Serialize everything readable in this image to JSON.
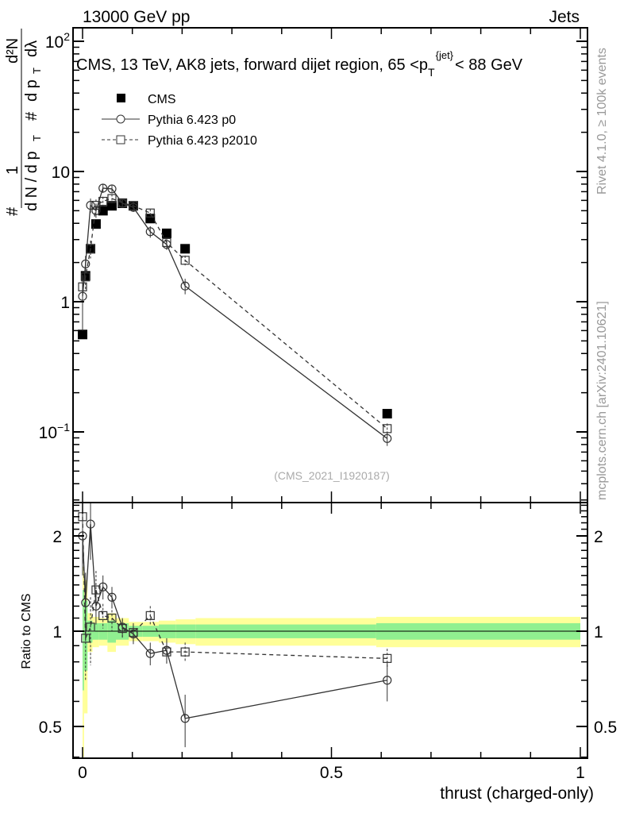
{
  "header": {
    "left": "13000 GeV pp",
    "right": "Jets"
  },
  "side": {
    "rivet": "Rivet 4.1.0, ≥ 100k events",
    "mcplots": "mcplots.cern.ch [arXiv:2401.10621]"
  },
  "chart_data": [
    {
      "type": "line",
      "title": "CMS, 13 TeV, AK8 jets, forward dijet region, 65 < p_T^{jet} < 88 GeV",
      "title_main": "CMS, 13 TeV, AK8 jets, forward dijet region, 65 <p",
      "title_sup": "{jet}",
      "title_sub": "T",
      "title_end": "< 88 GeV",
      "analysis": "(CMS_2021_I1920187)",
      "ylabel": "1/N dN/dpT d²N/dpT dλ",
      "ylabel_parts": {
        "frac1_num": "1",
        "frac1_den": "d N / d p",
        "frac2_num": "d²N",
        "frac2_den": "d p",
        "dl": "dλ",
        "hash": "#",
        "sub": "T"
      },
      "yscale": "log",
      "ylim": [
        0.029,
        123
      ],
      "yticks": [
        {
          "v": 100,
          "base": "10",
          "exp": "2"
        },
        {
          "v": 10,
          "base": "10",
          "exp": ""
        },
        {
          "v": 1,
          "base": "1",
          "exp": ""
        },
        {
          "v": 0.1,
          "base": "10",
          "exp": "−1"
        }
      ],
      "legend_position": "top-left",
      "x": [
        0.0,
        0.006,
        0.016,
        0.027,
        0.041,
        0.059,
        0.08,
        0.102,
        0.136,
        0.169,
        0.206,
        0.612
      ],
      "series": [
        {
          "name": "CMS",
          "style": "filled-square",
          "values": [
            0.56,
            1.58,
            2.55,
            3.95,
            5.0,
            5.45,
            5.7,
            5.45,
            4.35,
            3.35,
            2.55,
            0.138
          ],
          "err": [
            0.03,
            0.06,
            0.08,
            0.1,
            0.1,
            0.1,
            0.1,
            0.1,
            0.1,
            0.08,
            0.06,
            0.004
          ]
        },
        {
          "name": "Pythia 6.423 p0",
          "style": "circle-solid",
          "values": [
            1.1,
            1.95,
            5.5,
            5.0,
            7.45,
            7.35,
            5.7,
            5.3,
            3.45,
            2.75,
            1.32,
            0.089
          ],
          "err": [
            0.5,
            0.3,
            0.7,
            0.6,
            0.6,
            0.5,
            0.4,
            0.4,
            0.35,
            0.25,
            0.18,
            0.011
          ]
        },
        {
          "name": "Pythia 6.423 p2010",
          "style": "square-dashed",
          "values": [
            1.3,
            1.55,
            2.55,
            5.5,
            5.9,
            6.2,
            5.75,
            5.45,
            4.8,
            2.85,
            2.08,
            0.106
          ],
          "err": [
            0.3,
            0.3,
            0.4,
            0.6,
            0.5,
            0.5,
            0.4,
            0.4,
            0.35,
            0.25,
            0.18,
            0.01
          ]
        }
      ]
    },
    {
      "type": "line",
      "ylabel": "Ratio to CMS",
      "xlabel": "thrust (charged-only)",
      "yscale": "log",
      "ylim": [
        0.4,
        2.56
      ],
      "yticks": [
        {
          "v": 2,
          "label": "2"
        },
        {
          "v": 1,
          "label": "1"
        },
        {
          "v": 0.5,
          "label": "0.5"
        }
      ],
      "xticks": [
        {
          "v": 0,
          "label": "0"
        },
        {
          "v": 0.5,
          "label": "0.5"
        },
        {
          "v": 1,
          "label": "1"
        }
      ],
      "xlim": [
        -0.02,
        1.03
      ],
      "x": [
        0.0,
        0.006,
        0.016,
        0.027,
        0.041,
        0.059,
        0.08,
        0.102,
        0.136,
        0.169,
        0.206,
        0.612
      ],
      "series": [
        {
          "name": "Pythia 6.423 p0",
          "style": "circle-solid",
          "values": [
            2.0,
            1.23,
            2.18,
            1.2,
            1.38,
            1.28,
            1.03,
            0.98,
            0.85,
            0.87,
            0.53,
            0.7
          ],
          "err": [
            0.5,
            0.3,
            0.5,
            0.15,
            0.12,
            0.1,
            0.07,
            0.07,
            0.07,
            0.08,
            0.1,
            0.1
          ]
        },
        {
          "name": "Pythia 6.423 p2010",
          "style": "square-dashed",
          "values": [
            2.3,
            0.95,
            1.03,
            1.35,
            1.12,
            1.1,
            1.02,
            0.99,
            1.12,
            0.86,
            0.86,
            0.82
          ],
          "err": [
            0.5,
            0.25,
            0.25,
            0.2,
            0.1,
            0.1,
            0.07,
            0.07,
            0.08,
            0.07,
            0.06,
            0.06
          ]
        }
      ],
      "bands": {
        "edges": [
          0.0,
          0.003,
          0.01,
          0.02,
          0.033,
          0.05,
          0.067,
          0.093,
          0.12,
          0.153,
          0.187,
          0.227,
          0.5,
          0.59,
          1.0
        ],
        "green": [
          0.35,
          0.25,
          0.08,
          0.06,
          0.06,
          0.08,
          0.06,
          0.04,
          0.04,
          0.05,
          0.05,
          0.05,
          0.05,
          0.06
        ],
        "yellow": [
          0.6,
          0.45,
          0.14,
          0.11,
          0.1,
          0.14,
          0.1,
          0.07,
          0.07,
          0.08,
          0.09,
          0.1,
          0.1,
          0.11
        ]
      },
      "colors": {
        "green": "#90f090",
        "yellow": "#ffff99"
      }
    }
  ]
}
